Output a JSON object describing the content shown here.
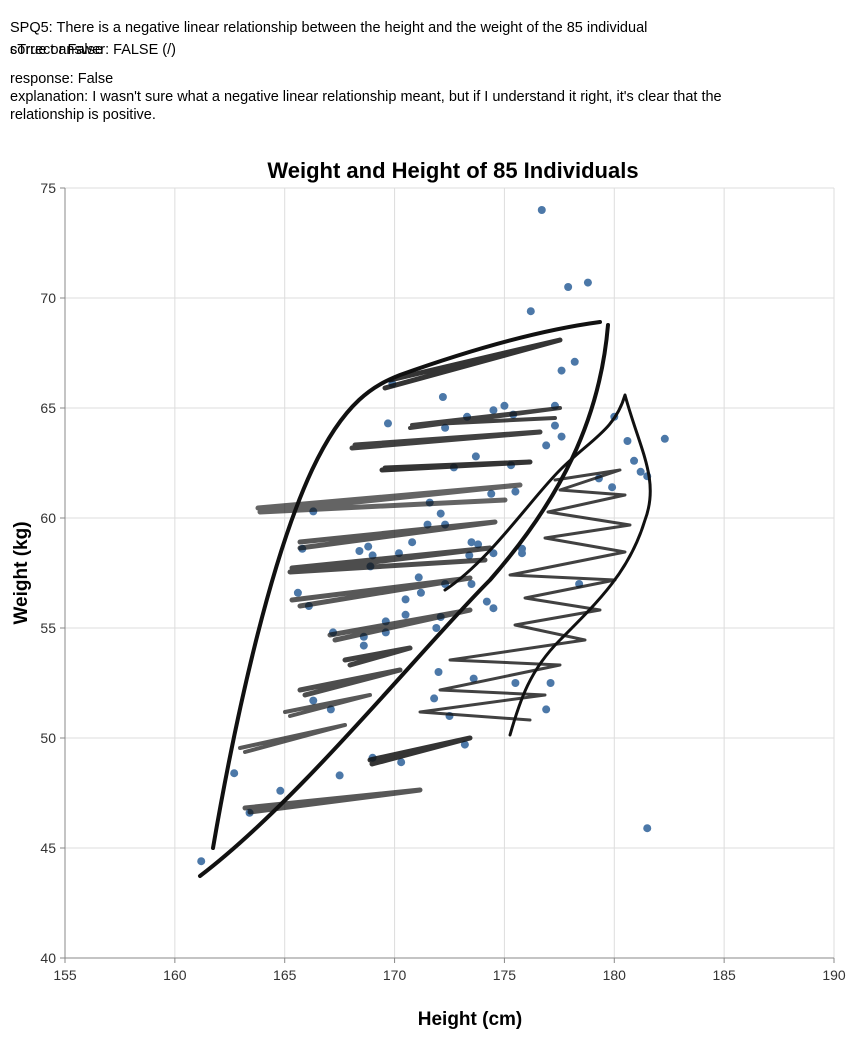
{
  "question": {
    "id_text": "SPQ5: There is a negative linear relationship between the height and the weight of the 85 individual",
    "true_false_label": "sTrue or False",
    "correct_answer_text": "correct answer: FALSE (/)",
    "response_text": "response: False",
    "explanation_text": "explanation: I wasn't sure what a negative linear relationship meant, but if I understand it right, it's clear that the relationship is positive."
  },
  "chart_data": {
    "type": "scatter",
    "title": "Weight and Height of 85 Individuals",
    "xlabel": "Height (cm)",
    "ylabel": "Weight (kg)",
    "xlim": [
      155,
      190
    ],
    "ylim": [
      40,
      75
    ],
    "xticks": [
      155,
      160,
      165,
      170,
      175,
      180,
      185,
      190
    ],
    "yticks": [
      40,
      45,
      50,
      55,
      60,
      65,
      70,
      75
    ],
    "grid": true,
    "point_color": "#4c78a8",
    "points": [
      [
        161.2,
        44.4
      ],
      [
        162.7,
        48.4
      ],
      [
        163.4,
        46.6
      ],
      [
        166.3,
        60.3
      ],
      [
        165.8,
        58.6
      ],
      [
        165.6,
        56.6
      ],
      [
        166.1,
        56.0
      ],
      [
        166.3,
        51.7
      ],
      [
        167.1,
        51.3
      ],
      [
        167.2,
        54.8
      ],
      [
        167.5,
        48.3
      ],
      [
        168.4,
        58.5
      ],
      [
        168.6,
        54.6
      ],
      [
        168.6,
        54.2
      ],
      [
        168.8,
        58.7
      ],
      [
        168.9,
        57.8
      ],
      [
        169.0,
        58.3
      ],
      [
        169.6,
        55.3
      ],
      [
        169.7,
        64.3
      ],
      [
        169.9,
        66.1
      ],
      [
        169.6,
        54.8
      ],
      [
        170.2,
        58.4
      ],
      [
        170.5,
        56.3
      ],
      [
        170.5,
        55.6
      ],
      [
        170.8,
        58.9
      ],
      [
        171.1,
        57.3
      ],
      [
        171.2,
        56.6
      ],
      [
        171.5,
        59.7
      ],
      [
        171.6,
        60.7
      ],
      [
        171.8,
        51.8
      ],
      [
        171.9,
        55.0
      ],
      [
        172.0,
        53.0
      ],
      [
        172.1,
        55.5
      ],
      [
        172.1,
        60.2
      ],
      [
        172.2,
        65.5
      ],
      [
        172.3,
        59.7
      ],
      [
        172.3,
        57.0
      ],
      [
        172.3,
        64.1
      ],
      [
        172.5,
        51.0
      ],
      [
        172.7,
        62.3
      ],
      [
        173.2,
        49.7
      ],
      [
        173.3,
        64.6
      ],
      [
        173.4,
        58.3
      ],
      [
        173.5,
        58.9
      ],
      [
        173.5,
        57.0
      ],
      [
        173.6,
        52.7
      ],
      [
        173.7,
        62.8
      ],
      [
        173.8,
        58.8
      ],
      [
        174.2,
        56.2
      ],
      [
        174.4,
        61.1
      ],
      [
        174.5,
        58.4
      ],
      [
        174.5,
        64.9
      ],
      [
        174.5,
        55.9
      ],
      [
        175.0,
        65.1
      ],
      [
        175.3,
        62.4
      ],
      [
        175.4,
        64.7
      ],
      [
        175.5,
        61.2
      ],
      [
        175.5,
        52.5
      ],
      [
        175.8,
        58.4
      ],
      [
        175.8,
        58.6
      ],
      [
        176.2,
        69.4
      ],
      [
        176.7,
        74.0
      ],
      [
        176.9,
        63.3
      ],
      [
        177.1,
        52.5
      ],
      [
        177.3,
        64.2
      ],
      [
        177.3,
        65.1
      ],
      [
        177.6,
        66.7
      ],
      [
        177.6,
        63.7
      ],
      [
        177.9,
        70.5
      ],
      [
        178.2,
        67.1
      ],
      [
        178.4,
        57.0
      ],
      [
        178.8,
        70.7
      ],
      [
        179.3,
        61.8
      ],
      [
        179.9,
        61.4
      ],
      [
        180.0,
        64.6
      ],
      [
        180.6,
        63.5
      ],
      [
        180.9,
        62.6
      ],
      [
        181.2,
        62.1
      ],
      [
        181.5,
        61.9
      ],
      [
        181.5,
        45.9
      ],
      [
        182.3,
        63.6
      ],
      [
        169.0,
        49.1
      ],
      [
        170.3,
        48.9
      ],
      [
        164.8,
        47.6
      ],
      [
        176.9,
        51.3
      ]
    ]
  }
}
